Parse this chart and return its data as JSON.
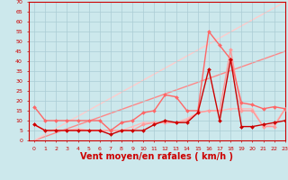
{
  "title": "",
  "xlabel": "Vent moyen/en rafales ( km/h )",
  "ylabel": "",
  "xlim": [
    -0.5,
    23
  ],
  "ylim": [
    0,
    70
  ],
  "yticks": [
    0,
    5,
    10,
    15,
    20,
    25,
    30,
    35,
    40,
    45,
    50,
    55,
    60,
    65,
    70
  ],
  "xticks": [
    0,
    1,
    2,
    3,
    4,
    5,
    6,
    7,
    8,
    9,
    10,
    11,
    12,
    13,
    14,
    15,
    16,
    17,
    18,
    19,
    20,
    21,
    22,
    23
  ],
  "bg_color": "#cce8ec",
  "grid_color": "#aaccd4",
  "lines": [
    {
      "x": [
        0,
        1,
        2,
        3,
        4,
        5,
        6,
        7,
        8,
        9,
        10,
        11,
        12,
        13,
        14,
        15,
        16,
        17,
        18,
        19,
        20,
        21,
        22,
        23
      ],
      "y": [
        8,
        5,
        5,
        5,
        5,
        5,
        5,
        3,
        5,
        5,
        5,
        8,
        10,
        9,
        9,
        14,
        36,
        10,
        41,
        7,
        7,
        8,
        9,
        10
      ],
      "color": "#cc0000",
      "lw": 1.0,
      "marker": "D",
      "ms": 2.0,
      "zorder": 5
    },
    {
      "x": [
        0,
        1,
        2,
        3,
        4,
        5,
        6,
        7,
        8,
        9,
        10,
        11,
        12,
        13,
        14,
        15,
        16,
        17,
        18,
        19,
        20,
        21,
        22,
        23
      ],
      "y": [
        17,
        10,
        10,
        10,
        10,
        10,
        10,
        5,
        9,
        10,
        14,
        15,
        23,
        22,
        15,
        15,
        55,
        48,
        41,
        19,
        18,
        16,
        17,
        16
      ],
      "color": "#ff6666",
      "lw": 1.0,
      "marker": "D",
      "ms": 2.0,
      "zorder": 4
    },
    {
      "x": [
        0,
        1,
        2,
        3,
        4,
        5,
        6,
        7,
        8,
        9,
        10,
        11,
        12,
        13,
        14,
        15,
        16,
        17,
        18,
        19,
        20,
        21,
        22,
        23
      ],
      "y": [
        8,
        5,
        5,
        5,
        5,
        5,
        5,
        5,
        5,
        5,
        8,
        9,
        9,
        9,
        10,
        14,
        15,
        15,
        46,
        15,
        15,
        7,
        7,
        16
      ],
      "color": "#ff9999",
      "lw": 1.0,
      "marker": "D",
      "ms": 2.0,
      "zorder": 3
    },
    {
      "x": [
        0,
        1,
        2,
        3,
        4,
        5,
        6,
        7,
        8,
        9,
        10,
        11,
        12,
        13,
        14,
        15,
        16,
        17,
        18,
        19,
        20,
        21,
        22,
        23
      ],
      "y": [
        8,
        5,
        5,
        5,
        6,
        5,
        5,
        5,
        5,
        7,
        9,
        9,
        9,
        9,
        11,
        14,
        15,
        15,
        16,
        16,
        16,
        7,
        8,
        16
      ],
      "color": "#ffbbbb",
      "lw": 1.0,
      "marker": "D",
      "ms": 1.5,
      "zorder": 2
    },
    {
      "x": [
        0,
        23
      ],
      "y": [
        0,
        45
      ],
      "color": "#ff8888",
      "lw": 1.0,
      "marker": null,
      "ms": 0,
      "zorder": 1
    },
    {
      "x": [
        0,
        23
      ],
      "y": [
        0,
        70
      ],
      "color": "#ffcccc",
      "lw": 1.0,
      "marker": null,
      "ms": 0,
      "zorder": 1
    }
  ],
  "axis_color": "#cc0000",
  "tick_color": "#cc0000",
  "label_color": "#cc0000",
  "xlabel_fontsize": 7.0,
  "tick_fontsize": 4.5
}
